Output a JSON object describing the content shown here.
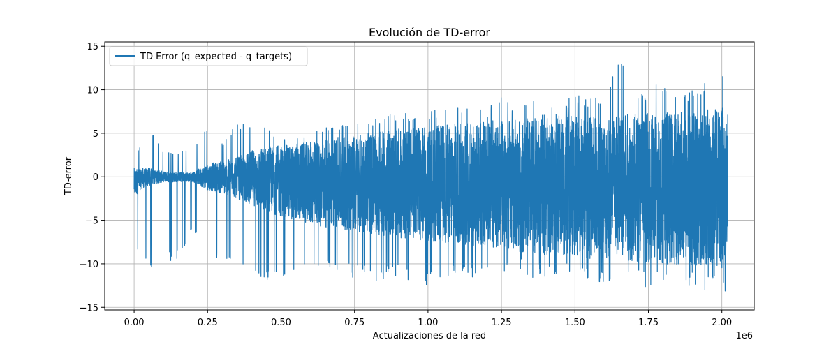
{
  "chart_data": {
    "type": "line",
    "title": "Evolución de TD-error",
    "xlabel": "Actualizaciones de la red",
    "ylabel": "TD-error",
    "x_offset_label": "1e6",
    "xlim": [
      -0.1,
      2.11
    ],
    "ylim": [
      -15.3,
      15.5
    ],
    "x_ticks": [
      0.0,
      0.25,
      0.5,
      0.75,
      1.0,
      1.25,
      1.5,
      1.75,
      2.0
    ],
    "x_tick_labels": [
      "0.00",
      "0.25",
      "0.50",
      "0.75",
      "1.00",
      "1.25",
      "1.50",
      "1.75",
      "2.00"
    ],
    "y_ticks": [
      -15,
      -10,
      -5,
      0,
      5,
      10,
      15
    ],
    "y_tick_labels": [
      "−15",
      "−10",
      "−5",
      "0",
      "5",
      "10",
      "15"
    ],
    "grid": true,
    "legend_position": "top-left",
    "series": [
      {
        "name": "TD Error (q_expected - q_targets)",
        "color": "#1f77b4",
        "x_range": [
          0.0,
          2.02
        ],
        "envelope": {
          "x": [
            0.0,
            0.02,
            0.05,
            0.1,
            0.15,
            0.2,
            0.25,
            0.3,
            0.35,
            0.4,
            0.45,
            0.5,
            0.55,
            0.6,
            0.65,
            0.7,
            0.75,
            0.8,
            0.85,
            0.9,
            0.95,
            1.0,
            1.05,
            1.1,
            1.15,
            1.2,
            1.25,
            1.3,
            1.35,
            1.4,
            1.45,
            1.5,
            1.55,
            1.6,
            1.65,
            1.7,
            1.75,
            1.8,
            1.85,
            1.9,
            1.95,
            2.0,
            2.02
          ],
          "upper": [
            1.5,
            3.8,
            6.3,
            3.0,
            3.0,
            3.4,
            6.3,
            4.0,
            6.5,
            5.8,
            6.1,
            4.5,
            4.5,
            5.5,
            5.7,
            6.1,
            6.5,
            6.8,
            7.0,
            7.6,
            7.3,
            7.4,
            8.1,
            8.4,
            7.8,
            8.0,
            9.2,
            8.2,
            9.3,
            7.8,
            8.1,
            9.6,
            9.1,
            9.3,
            14.2,
            9.4,
            10.2,
            11.1,
            9.8,
            10.3,
            11.4,
            12.3,
            11.2
          ],
          "lower": [
            -10.4,
            -8.0,
            -10.8,
            -9.8,
            -9.7,
            -6.0,
            -9.9,
            -9.2,
            -10.4,
            -10.5,
            -12.3,
            -11.5,
            -11.3,
            -11.1,
            -11.2,
            -11.7,
            -11.7,
            -12.1,
            -11.7,
            -11.9,
            -11.9,
            -12.7,
            -11.3,
            -11.9,
            -11.9,
            -10.9,
            -11.0,
            -10.8,
            -11.6,
            -11.5,
            -11.6,
            -11.5,
            -12.2,
            -12.2,
            -12.3,
            -12.3,
            -12.8,
            -12.6,
            -13.1,
            -12.8,
            -13.1,
            -13.0,
            -13.7
          ],
          "upper_typical": [
            1.0,
            1.0,
            1.0,
            0.6,
            0.5,
            0.5,
            1.5,
            1.8,
            2.2,
            3.0,
            3.5,
            3.6,
            3.8,
            4.0,
            4.2,
            4.6,
            4.8,
            5.0,
            5.2,
            5.5,
            5.6,
            5.8,
            6.0,
            6.2,
            6.3,
            6.4,
            6.5,
            6.6,
            6.7,
            6.8,
            6.9,
            7.0,
            7.0,
            7.1,
            7.2,
            7.3,
            7.4,
            7.5,
            7.6,
            7.7,
            7.8,
            7.9,
            8.0
          ],
          "lower_typical": [
            -2.5,
            -1.5,
            -1.0,
            -0.6,
            -0.6,
            -0.6,
            -1.5,
            -2.0,
            -2.5,
            -3.2,
            -4.0,
            -4.6,
            -5.0,
            -5.4,
            -5.8,
            -6.1,
            -6.3,
            -6.5,
            -6.8,
            -7.0,
            -7.2,
            -7.4,
            -7.6,
            -7.8,
            -8.0,
            -8.2,
            -8.4,
            -8.6,
            -8.8,
            -9.0,
            -9.1,
            -9.2,
            -9.4,
            -9.5,
            -9.6,
            -9.7,
            -9.8,
            -10.0,
            -10.1,
            -10.3,
            -10.4,
            -10.5,
            -10.6
          ]
        }
      }
    ]
  }
}
